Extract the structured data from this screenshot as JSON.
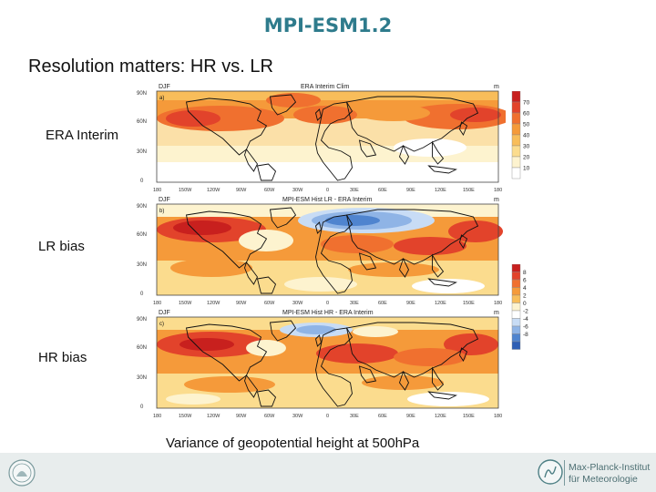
{
  "slide": {
    "title": "MPI-ESM1.2",
    "subtitle": "Resolution matters: HR vs. LR",
    "caption": "Variance of geopotential height at 500hPa"
  },
  "rows": [
    {
      "label": "ERA Interim",
      "season": "DJF",
      "panel": "a)",
      "map_title": "ERA Interim Clim",
      "unit": "m"
    },
    {
      "label": "LR bias",
      "season": "DJF",
      "panel": "b)",
      "map_title": "MPI-ESM Hist LR - ERA Interim",
      "unit": "m"
    },
    {
      "label": "HR bias",
      "season": "DJF",
      "panel": "c)",
      "map_title": "MPI-ESM Hist HR - ERA Interim",
      "unit": "m"
    }
  ],
  "axes": {
    "lat_ticks": [
      "90N",
      "60N",
      "30N",
      "0"
    ],
    "lon_ticks": [
      "180",
      "150W",
      "120W",
      "90W",
      "60W",
      "30W",
      "0",
      "30E",
      "60E",
      "90E",
      "120E",
      "150E",
      "180"
    ]
  },
  "colorbars": {
    "clim": {
      "labels": [
        "70",
        "60",
        "50",
        "40",
        "30",
        "20",
        "10"
      ],
      "colors": [
        "#c8201e",
        "#e2432b",
        "#f0702f",
        "#f59a3a",
        "#f8bd5a",
        "#fbdc8e",
        "#fdf3cf",
        "#ffffff"
      ]
    },
    "bias": {
      "labels": [
        "8",
        "6",
        "4",
        "2",
        "0",
        "-2",
        "-4",
        "-6",
        "-8"
      ],
      "colors": [
        "#c8201e",
        "#e2432b",
        "#f0702f",
        "#f59a3a",
        "#f8bd5a",
        "#fdf3cf",
        "#ffffff",
        "#c8dcf5",
        "#8fb4e6",
        "#4f84cf",
        "#2e5fb5"
      ]
    }
  },
  "footer": {
    "institute_line1": "Max-Planck-Institut",
    "institute_line2": "für Meteorologie"
  },
  "colors": {
    "title": "#2e7b8c",
    "footer_bg": "#e8eded"
  }
}
